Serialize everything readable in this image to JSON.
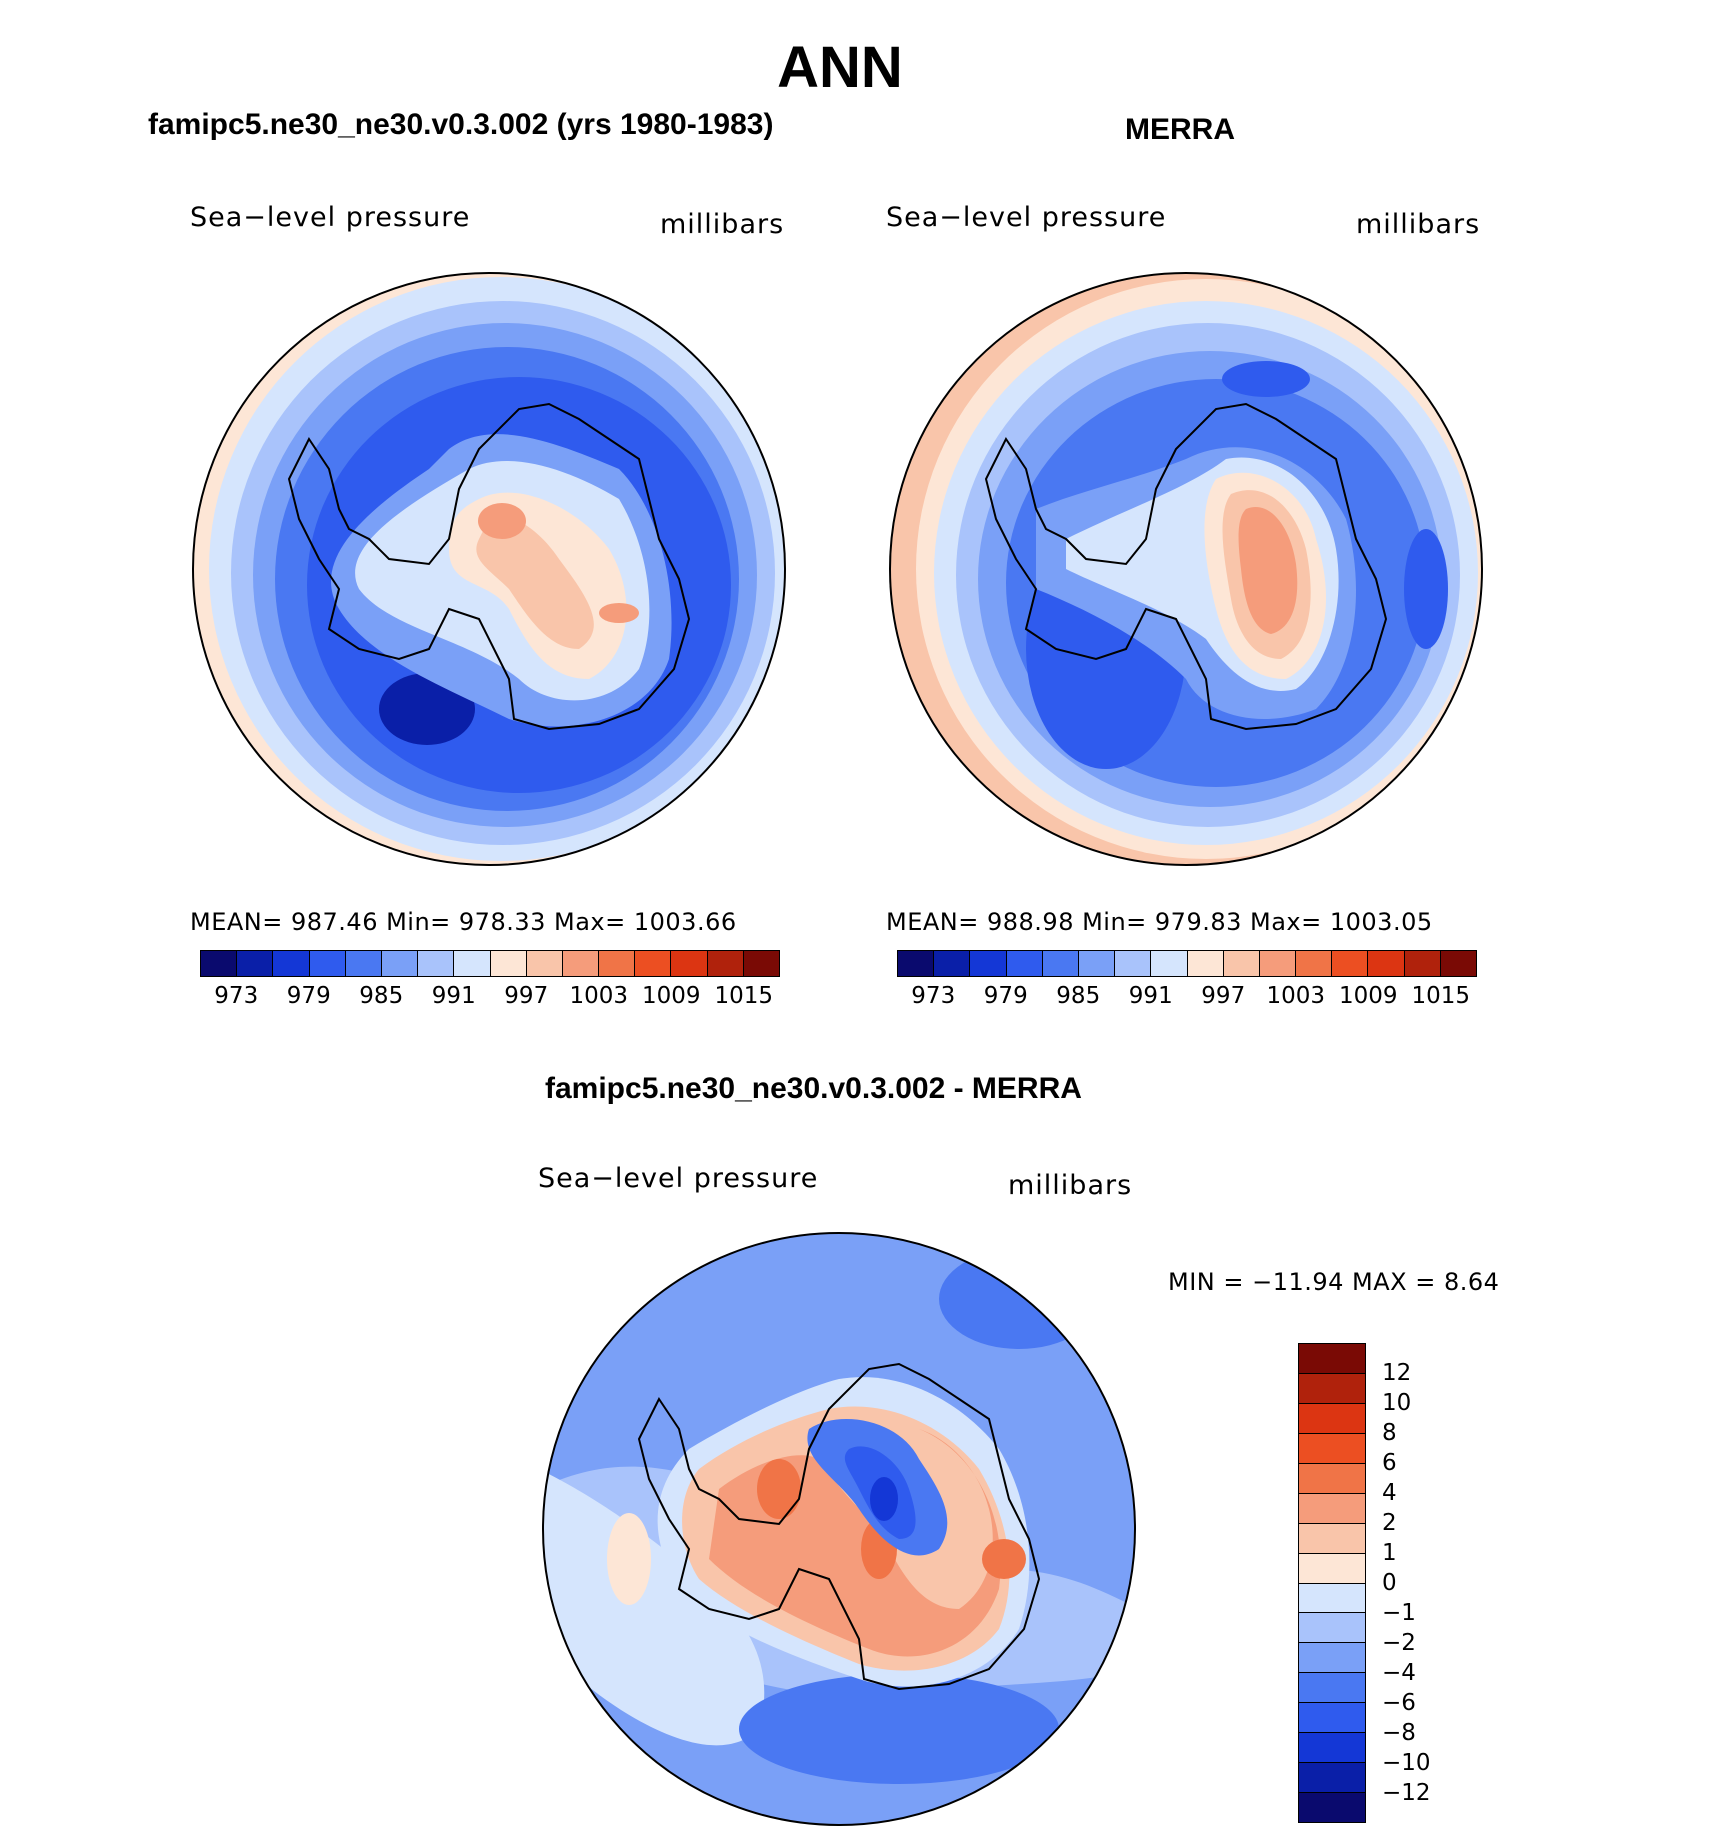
{
  "figure": {
    "title": "ANN"
  },
  "panels": [
    {
      "id": "model",
      "case_title": "famipc5.ne30_ne30.v0.3.002 (yrs 1980-1983)",
      "variable": "Sea−level pressure",
      "units": "millibars",
      "stats_line": "MEAN=  987.46    Min=  978.33    Max=  1003.66",
      "stats": {
        "mean": 987.46,
        "min": 978.33,
        "max": 1003.66
      }
    },
    {
      "id": "obs",
      "case_title": "MERRA",
      "variable": "Sea−level pressure",
      "units": "millibars",
      "stats_line": "MEAN=  988.98    Min=  979.83    Max=  1003.05",
      "stats": {
        "mean": 988.98,
        "min": 979.83,
        "max": 1003.05
      }
    },
    {
      "id": "diff",
      "case_title": "famipc5.ne30_ne30.v0.3.002 - MERRA",
      "variable": "Sea−level pressure",
      "units": "millibars",
      "stats_line": "MIN  =  −11.94  MAX  =      8.64",
      "stats": {
        "min": -11.94,
        "max": 8.64
      }
    }
  ],
  "colorbar_abs": {
    "ticks": [
      "973",
      "979",
      "985",
      "991",
      "997",
      "1003",
      "1009",
      "1015"
    ],
    "colors": [
      "#0a0a6e",
      "#0a1fa8",
      "#1437d6",
      "#2f5bee",
      "#4a78f2",
      "#7aa0f7",
      "#a9c3fb",
      "#d5e5fd",
      "#fde6d6",
      "#f9c5aa",
      "#f59c7b",
      "#f07447",
      "#ec4f22",
      "#dc3512",
      "#b0220c",
      "#7a0a05"
    ]
  },
  "colorbar_diff": {
    "ticks": [
      "12",
      "10",
      "8",
      "6",
      "4",
      "2",
      "1",
      "0",
      "−1",
      "−2",
      "−4",
      "−6",
      "−8",
      "−10",
      "−12"
    ],
    "colors": [
      "#0a0a6e",
      "#0a1fa8",
      "#1437d6",
      "#2f5bee",
      "#4a78f2",
      "#7aa0f7",
      "#a9c3fb",
      "#d5e5fd",
      "#fde6d6",
      "#f9c5aa",
      "#f59c7b",
      "#f07447",
      "#ec4f22",
      "#dc3512",
      "#b0220c",
      "#7a0a05"
    ]
  },
  "map_colors": {
    "deep_low": "#0a1fa8",
    "low": "#2f5bee",
    "mid_low": "#4a78f2",
    "light_low": "#7aa0f7",
    "pale_low": "#a9c3fb",
    "paler_low": "#d5e5fd",
    "pale_high": "#fde6d6",
    "light_high": "#f9c5aa",
    "mid_high": "#f59c7b",
    "high": "#f07447",
    "coast": "#000000"
  }
}
